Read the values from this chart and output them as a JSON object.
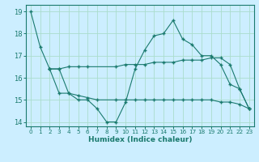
{
  "xlabel": "Humidex (Indice chaleur)",
  "bg_color": "#cceeff",
  "line_color": "#1a7a6e",
  "grid_color": "#aaddcc",
  "xlim": [
    -0.5,
    23.5
  ],
  "ylim": [
    13.8,
    19.3
  ],
  "yticks": [
    14,
    15,
    16,
    17,
    18,
    19
  ],
  "xticks": [
    0,
    1,
    2,
    3,
    4,
    5,
    6,
    7,
    8,
    9,
    10,
    11,
    12,
    13,
    14,
    15,
    16,
    17,
    18,
    19,
    20,
    21,
    22,
    23
  ],
  "lines": [
    {
      "x": [
        0,
        1,
        2,
        3,
        4,
        5,
        6,
        7,
        8,
        9,
        10,
        11,
        12,
        13,
        14,
        15,
        16,
        17,
        18,
        19,
        20,
        21,
        22,
        23
      ],
      "y": [
        19.0,
        17.4,
        16.4,
        15.3,
        15.3,
        15.0,
        15.0,
        14.6,
        14.0,
        14.0,
        14.9,
        16.4,
        17.25,
        17.9,
        18.0,
        18.6,
        17.75,
        17.5,
        17.0,
        17.0,
        16.6,
        15.7,
        15.5,
        14.6
      ]
    },
    {
      "x": [
        2,
        3,
        4,
        5,
        6,
        9,
        10,
        11,
        12,
        13,
        14,
        15,
        16,
        17,
        18,
        19,
        20,
        21,
        22,
        23
      ],
      "y": [
        16.4,
        16.4,
        16.5,
        16.5,
        16.5,
        16.5,
        16.6,
        16.6,
        16.6,
        16.7,
        16.7,
        16.7,
        16.8,
        16.8,
        16.8,
        16.9,
        16.9,
        16.6,
        15.5,
        14.6
      ]
    },
    {
      "x": [
        2,
        3,
        4,
        5,
        6,
        7,
        9,
        10,
        11,
        12,
        13,
        14,
        15,
        16,
        17,
        18,
        19,
        20,
        21,
        22,
        23
      ],
      "y": [
        16.4,
        16.4,
        15.3,
        15.2,
        15.1,
        15.0,
        15.0,
        15.0,
        15.0,
        15.0,
        15.0,
        15.0,
        15.0,
        15.0,
        15.0,
        15.0,
        15.0,
        14.9,
        14.9,
        14.8,
        14.6
      ]
    }
  ]
}
